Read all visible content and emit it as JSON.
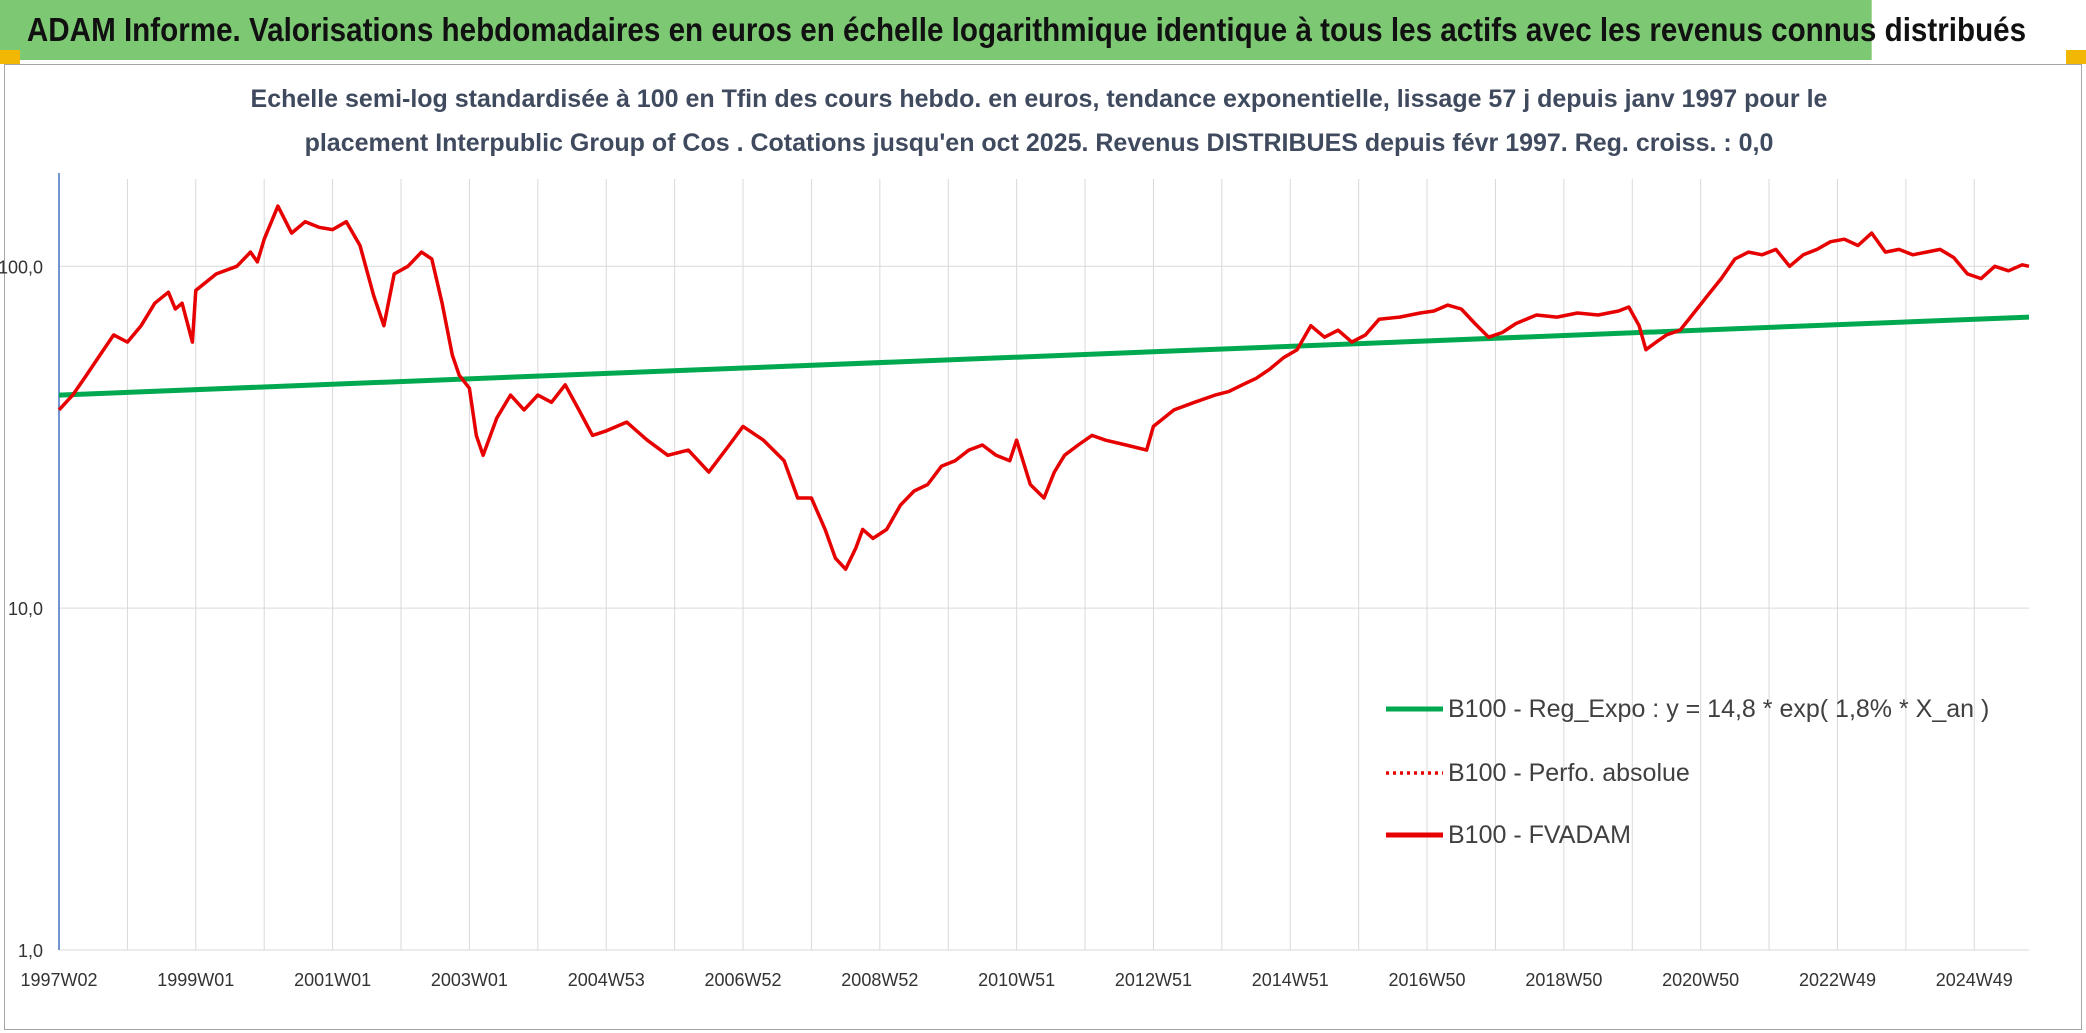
{
  "banner": {
    "title": "ADAM Informe. Valorisations hebdomadaires en euros en échelle logarithmique identique à tous les actifs avec les revenus connus distribués"
  },
  "colors": {
    "banner_bg": "#7dc973",
    "corner": "#f2b705",
    "fvadam": "#e60000",
    "perfo": "#e60000",
    "regression": "#00a94f",
    "grid": "#d9d9d9",
    "axis": "#4472c4"
  },
  "chart_data": {
    "type": "line",
    "title_line1": "Echelle semi-log standardisée à 100 en Tfin des cours hebdo. en euros, tendance exponentielle, lissage 57 j depuis janv 1997 pour le",
    "title_line2": "placement Interpublic Group of Cos . Cotations jusqu'en oct 2025. Revenus DISTRIBUES depuis févr 1997. Reg. croiss. : 0,0",
    "y_scale": "log",
    "ylim": [
      1,
      180
    ],
    "y_ticks": [
      {
        "value": 1,
        "label": "1,0"
      },
      {
        "value": 10,
        "label": "10,0"
      },
      {
        "value": 100,
        "label": "100,0"
      }
    ],
    "x_range": [
      1997.0,
      2025.8
    ],
    "x_ticks": [
      {
        "value": 1997.0,
        "label": "1997W02"
      },
      {
        "value": 1999.0,
        "label": "1999W01"
      },
      {
        "value": 2001.0,
        "label": "2001W01"
      },
      {
        "value": 2003.0,
        "label": "2003W01"
      },
      {
        "value": 2005.0,
        "label": "2004W53"
      },
      {
        "value": 2007.0,
        "label": "2006W52"
      },
      {
        "value": 2009.0,
        "label": "2008W52"
      },
      {
        "value": 2011.0,
        "label": "2010W51"
      },
      {
        "value": 2013.0,
        "label": "2012W51"
      },
      {
        "value": 2015.0,
        "label": "2014W51"
      },
      {
        "value": 2017.0,
        "label": "2016W50"
      },
      {
        "value": 2019.0,
        "label": "2018W50"
      },
      {
        "value": 2021.0,
        "label": "2020W50"
      },
      {
        "value": 2023.0,
        "label": "2022W49"
      },
      {
        "value": 2025.0,
        "label": "2024W49"
      }
    ],
    "minor_gridlines": [
      1998.0,
      2000.0,
      2002.0,
      2004.0,
      2006.0,
      2008.0,
      2010.0,
      2012.0,
      2014.0,
      2016.0,
      2018.0,
      2020.0,
      2022.0,
      2024.0
    ],
    "grid": true,
    "legend_position": "right",
    "series": [
      {
        "name": "B100 - Reg_Expo : y = 14,8 * exp( 1,8% *  X_an )",
        "style": "solid-thick",
        "x": [
          1997.0,
          2025.8
        ],
        "y": [
          42,
          71
        ]
      },
      {
        "name": "B100 - Perfo. absolue",
        "style": "dotted",
        "x": [],
        "y": []
      },
      {
        "name": "B100 - FVADAM",
        "style": "solid",
        "x": [
          1997.0,
          1997.2,
          1997.4,
          1997.6,
          1997.8,
          1998.0,
          1998.2,
          1998.4,
          1998.6,
          1998.7,
          1998.8,
          1998.95,
          1999.0,
          1999.3,
          1999.6,
          1999.8,
          1999.9,
          2000.0,
          2000.2,
          2000.4,
          2000.6,
          2000.8,
          2001.0,
          2001.2,
          2001.4,
          2001.6,
          2001.75,
          2001.9,
          2002.1,
          2002.3,
          2002.45,
          2002.6,
          2002.75,
          2002.85,
          2003.0,
          2003.1,
          2003.2,
          2003.4,
          2003.6,
          2003.8,
          2004.0,
          2004.2,
          2004.4,
          2004.6,
          2004.8,
          2005.0,
          2005.3,
          2005.6,
          2005.9,
          2006.2,
          2006.5,
          2006.8,
          2007.0,
          2007.3,
          2007.6,
          2007.8,
          2008.0,
          2008.2,
          2008.35,
          2008.5,
          2008.65,
          2008.75,
          2008.9,
          2009.1,
          2009.3,
          2009.5,
          2009.7,
          2009.9,
          2010.1,
          2010.3,
          2010.5,
          2010.7,
          2010.9,
          2011.0,
          2011.2,
          2011.4,
          2011.55,
          2011.7,
          2011.9,
          2012.1,
          2012.3,
          2012.6,
          2012.9,
          2013.0,
          2013.3,
          2013.6,
          2013.9,
          2014.1,
          2014.3,
          2014.5,
          2014.7,
          2014.9,
          2015.1,
          2015.3,
          2015.5,
          2015.7,
          2015.9,
          2016.1,
          2016.3,
          2016.6,
          2016.9,
          2017.1,
          2017.3,
          2017.5,
          2017.7,
          2017.9,
          2018.1,
          2018.3,
          2018.6,
          2018.9,
          2019.2,
          2019.5,
          2019.8,
          2019.95,
          2020.1,
          2020.2,
          2020.35,
          2020.5,
          2020.7,
          2020.9,
          2021.1,
          2021.3,
          2021.5,
          2021.7,
          2021.9,
          2022.1,
          2022.3,
          2022.5,
          2022.7,
          2022.9,
          2023.1,
          2023.3,
          2023.5,
          2023.7,
          2023.9,
          2024.1,
          2024.3,
          2024.5,
          2024.7,
          2024.9,
          2025.1,
          2025.3,
          2025.5,
          2025.7,
          2025.8
        ],
        "y": [
          38,
          42,
          48,
          55,
          63,
          60,
          67,
          78,
          84,
          75,
          78,
          60,
          85,
          95,
          100,
          110,
          103,
          120,
          150,
          125,
          135,
          130,
          128,
          135,
          115,
          82,
          67,
          95,
          100,
          110,
          105,
          78,
          55,
          48,
          44,
          32,
          28,
          36,
          42,
          38,
          42,
          40,
          45,
          38,
          32,
          33,
          35,
          31,
          28,
          29,
          25,
          30,
          34,
          31,
          27,
          21,
          21,
          17,
          14,
          13,
          15,
          17,
          16,
          17,
          20,
          22,
          23,
          26,
          27,
          29,
          30,
          28,
          27,
          31,
          23,
          21,
          25,
          28,
          30,
          32,
          31,
          30,
          29,
          34,
          38,
          40,
          42,
          43,
          45,
          47,
          50,
          54,
          57,
          67,
          62,
          65,
          60,
          63,
          70,
          71,
          73,
          74,
          77,
          75,
          68,
          62,
          64,
          68,
          72,
          71,
          73,
          72,
          74,
          76,
          67,
          57,
          60,
          63,
          65,
          73,
          82,
          92,
          105,
          110,
          108,
          112,
          100,
          108,
          112,
          118,
          120,
          115,
          125,
          110,
          112,
          108,
          110,
          112,
          106,
          95,
          92,
          100,
          97,
          101,
          100
        ]
      }
    ]
  }
}
